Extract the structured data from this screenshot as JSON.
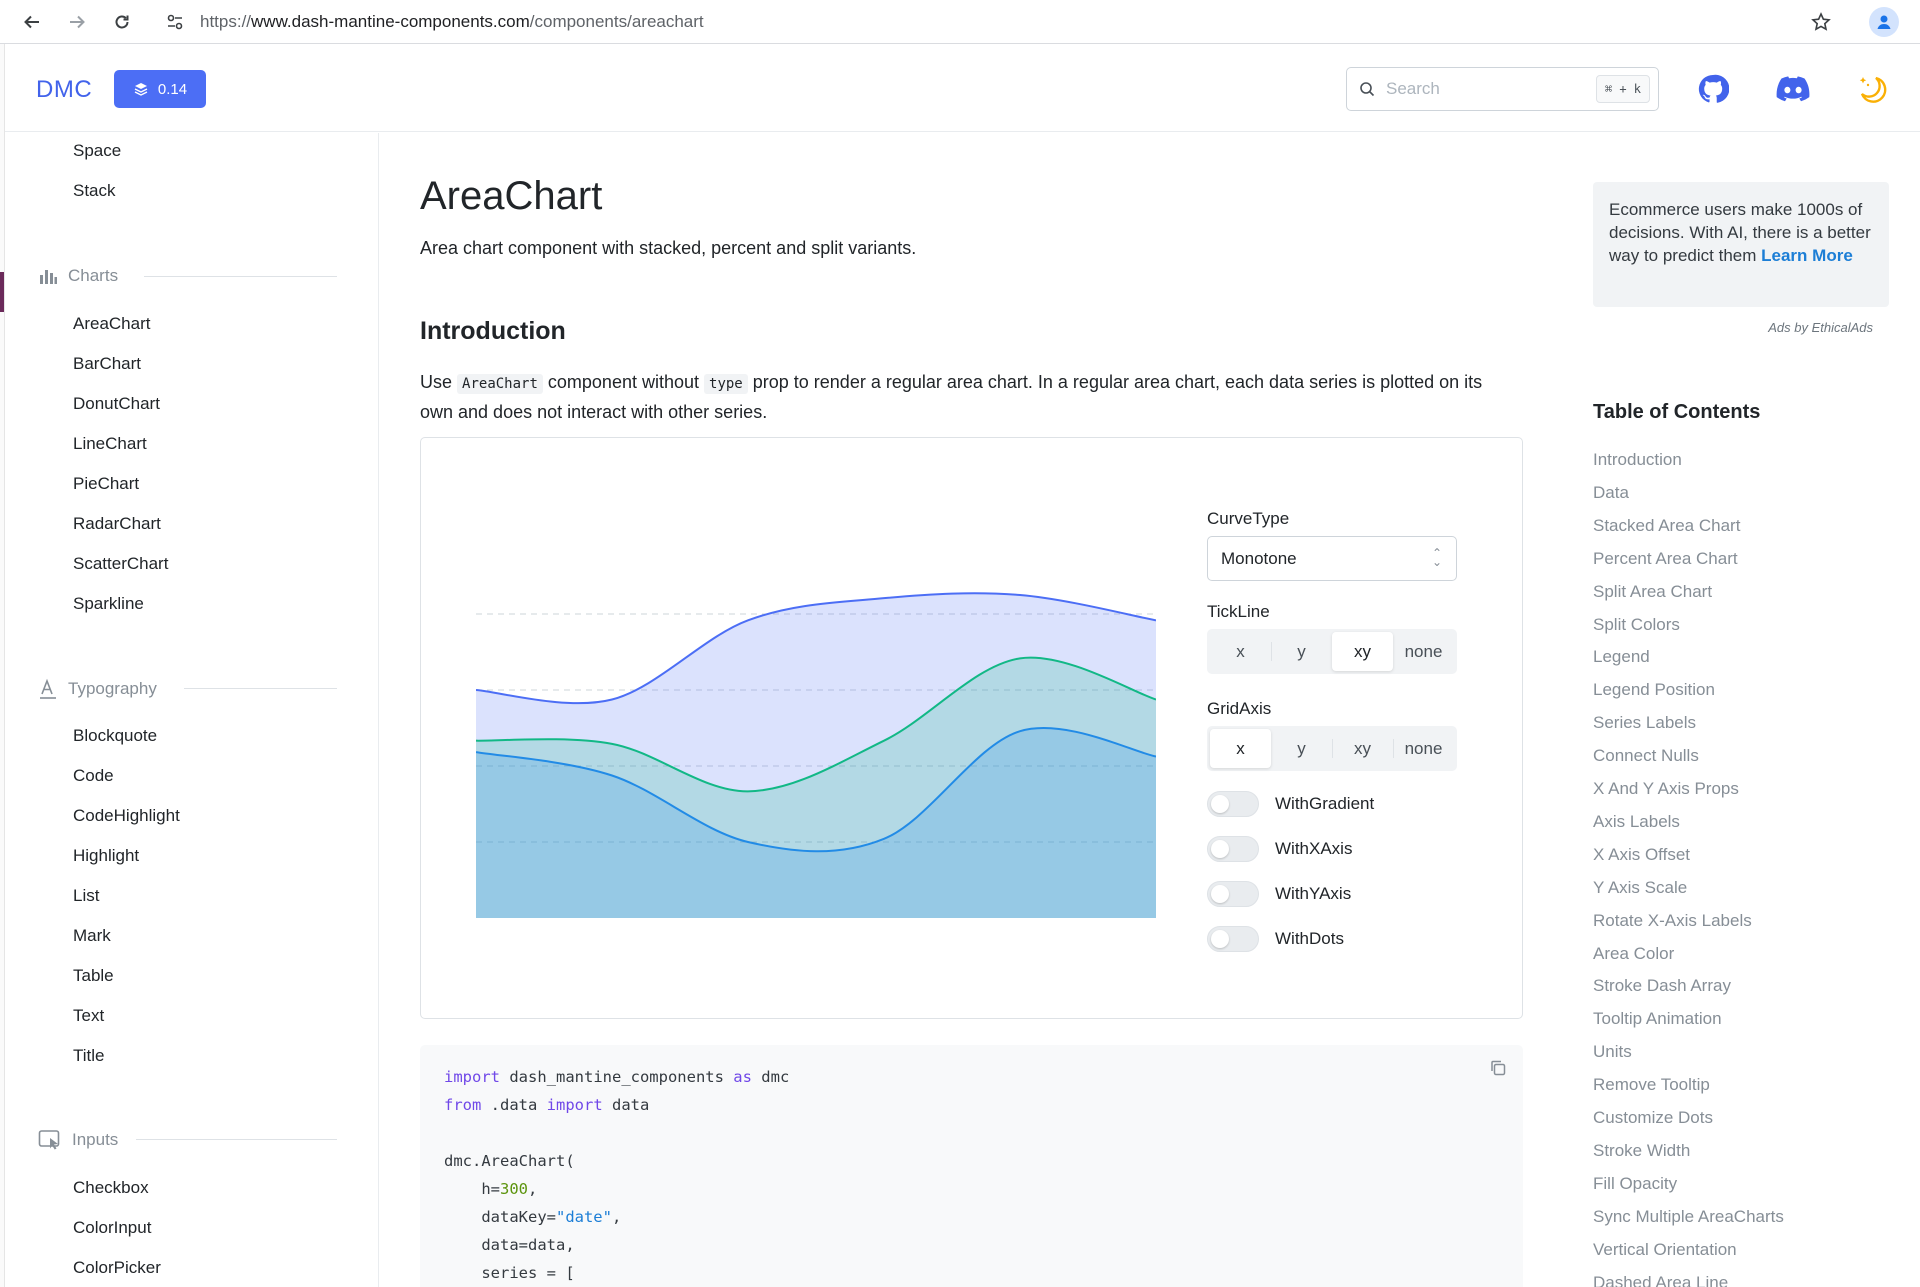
{
  "browser": {
    "url_prefix": "https://",
    "url_host": "www.dash-mantine-components.com",
    "url_path": "/components/areachart"
  },
  "header": {
    "logo": "DMC",
    "version": "0.14",
    "search_placeholder": "Search",
    "search_shortcut": "⌘ + k",
    "accent": "#4c6ef5"
  },
  "sidebar": {
    "top_items": [
      "Space",
      "Stack"
    ],
    "sections": [
      {
        "title": "Charts",
        "items": [
          "AreaChart",
          "BarChart",
          "DonutChart",
          "LineChart",
          "PieChart",
          "RadarChart",
          "ScatterChart",
          "Sparkline"
        ]
      },
      {
        "title": "Typography",
        "items": [
          "Blockquote",
          "Code",
          "CodeHighlight",
          "Highlight",
          "List",
          "Mark",
          "Table",
          "Text",
          "Title"
        ]
      },
      {
        "title": "Inputs",
        "items": [
          "Checkbox",
          "ColorInput",
          "ColorPicker"
        ]
      }
    ]
  },
  "main": {
    "title": "AreaChart",
    "description": "Area chart component with stacked, percent and split variants.",
    "section_title": "Introduction",
    "para_1": "Use",
    "para_code_1": "AreaChart",
    "para_2": "component without",
    "para_code_2": "type",
    "para_3": "prop to render a regular area chart. In a regular area chart, each data series is plotted on its own and does not interact with other series."
  },
  "controls": {
    "curve_type_label": "CurveType",
    "curve_type_value": "Monotone",
    "tickline_label": "TickLine",
    "tickline_options": [
      "x",
      "y",
      "xy",
      "none"
    ],
    "tickline_selected": "xy",
    "gridaxis_label": "GridAxis",
    "gridaxis_options": [
      "x",
      "y",
      "xy",
      "none"
    ],
    "gridaxis_selected": "x",
    "toggles": [
      "WithGradient",
      "WithXAxis",
      "WithYAxis",
      "WithDots"
    ]
  },
  "chart_data": {
    "type": "area",
    "x": [
      0,
      1,
      2,
      3,
      4,
      5
    ],
    "series": [
      {
        "values": [
          360,
          345,
          470,
          505,
          510,
          470
        ],
        "color": "#4c6ef5"
      },
      {
        "values": [
          280,
          275,
          200,
          280,
          410,
          345
        ],
        "color": "#12b886"
      },
      {
        "values": [
          262,
          225,
          120,
          125,
          295,
          255
        ],
        "color": "#228be6"
      }
    ],
    "ylim": [
      0,
      600
    ],
    "grid": "horizontal dashed",
    "xaxis": false,
    "yaxis": false
  },
  "code": {
    "lines": [
      [
        {
          "k": "kw",
          "t": "import"
        },
        {
          "k": "",
          "t": " dash_mantine_components "
        },
        {
          "k": "kw",
          "t": "as"
        },
        {
          "k": "",
          "t": " dmc"
        }
      ],
      [
        {
          "k": "kw",
          "t": "from"
        },
        {
          "k": "",
          "t": " .data "
        },
        {
          "k": "kw",
          "t": "import"
        },
        {
          "k": "",
          "t": " data"
        }
      ],
      [
        {
          "k": "",
          "t": ""
        }
      ],
      [
        {
          "k": "",
          "t": "dmc.AreaChart("
        }
      ],
      [
        {
          "k": "",
          "t": "    h="
        },
        {
          "k": "num",
          "t": "300"
        },
        {
          "k": "",
          "t": ","
        }
      ],
      [
        {
          "k": "",
          "t": "    dataKey="
        },
        {
          "k": "str",
          "t": "\"date\""
        },
        {
          "k": "",
          "t": ","
        }
      ],
      [
        {
          "k": "",
          "t": "    data=data,"
        }
      ],
      [
        {
          "k": "",
          "t": "    series = ["
        }
      ]
    ]
  },
  "ad": {
    "text": "Ecommerce users make 1000s of decisions. With AI, there is a better way to predict them",
    "link": "Learn More",
    "by": "Ads by EthicalAds"
  },
  "toc": {
    "title": "Table of Contents",
    "items": [
      "Introduction",
      "Data",
      "Stacked Area Chart",
      "Percent Area Chart",
      "Split Area Chart",
      "Split Colors",
      "Legend",
      "Legend Position",
      "Series Labels",
      "Connect Nulls",
      "X And Y Axis Props",
      "Axis Labels",
      "X Axis Offset",
      "Y Axis Scale",
      "Rotate X-Axis Labels",
      "Area Color",
      "Stroke Dash Array",
      "Tooltip Animation",
      "Units",
      "Remove Tooltip",
      "Customize Dots",
      "Stroke Width",
      "Fill Opacity",
      "Sync Multiple AreaCharts",
      "Vertical Orientation",
      "Dashed Area Line"
    ]
  }
}
